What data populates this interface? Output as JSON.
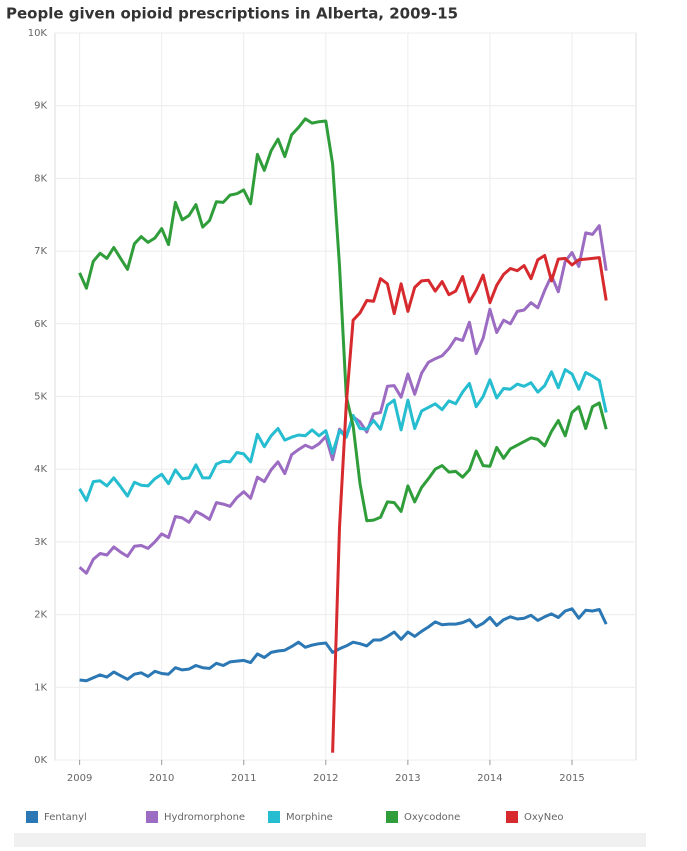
{
  "chart_data": {
    "type": "line",
    "title": "People given opioid prescriptions in Alberta, 2009-15",
    "x": [
      2009,
      2009.083,
      2009.167,
      2009.25,
      2009.333,
      2009.417,
      2009.5,
      2009.583,
      2009.667,
      2009.75,
      2009.833,
      2009.917,
      2010,
      2010.083,
      2010.167,
      2010.25,
      2010.333,
      2010.417,
      2010.5,
      2010.583,
      2010.667,
      2010.75,
      2010.833,
      2010.917,
      2011,
      2011.083,
      2011.167,
      2011.25,
      2011.333,
      2011.417,
      2011.5,
      2011.583,
      2011.667,
      2011.75,
      2011.833,
      2011.917,
      2012,
      2012.083,
      2012.167,
      2012.25,
      2012.333,
      2012.417,
      2012.5,
      2012.583,
      2012.667,
      2012.75,
      2012.833,
      2012.917,
      2013,
      2013.083,
      2013.167,
      2013.25,
      2013.333,
      2013.417,
      2013.5,
      2013.583,
      2013.667,
      2013.75,
      2013.833,
      2013.917,
      2014,
      2014.083,
      2014.167,
      2014.25,
      2014.333,
      2014.417,
      2014.5,
      2014.583,
      2014.667,
      2014.75,
      2014.833,
      2014.917,
      2015,
      2015.083,
      2015.167,
      2015.25,
      2015.333,
      2015.417
    ],
    "series": [
      {
        "name": "Fentanyl",
        "color": "#2b78b4",
        "values": [
          1100,
          1090,
          1130,
          1170,
          1140,
          1210,
          1160,
          1110,
          1180,
          1200,
          1150,
          1220,
          1190,
          1180,
          1270,
          1240,
          1250,
          1300,
          1270,
          1260,
          1330,
          1300,
          1350,
          1360,
          1370,
          1340,
          1460,
          1410,
          1480,
          1500,
          1510,
          1560,
          1620,
          1550,
          1580,
          1600,
          1610,
          1480,
          1530,
          1570,
          1620,
          1600,
          1570,
          1650,
          1650,
          1700,
          1760,
          1660,
          1760,
          1700,
          1770,
          1830,
          1900,
          1860,
          1870,
          1870,
          1890,
          1930,
          1830,
          1880,
          1960,
          1850,
          1930,
          1970,
          1940,
          1950,
          1990,
          1920,
          1970,
          2010,
          1960,
          2050,
          2080,
          1950,
          2060,
          2050,
          2070,
          1870
        ]
      },
      {
        "name": "Hydromorphone",
        "color": "#9b6cc2",
        "values": [
          2650,
          2570,
          2760,
          2840,
          2820,
          2930,
          2860,
          2800,
          2940,
          2950,
          2910,
          3000,
          3110,
          3060,
          3350,
          3330,
          3270,
          3420,
          3370,
          3310,
          3540,
          3520,
          3490,
          3610,
          3690,
          3600,
          3890,
          3830,
          3990,
          4100,
          3940,
          4200,
          4270,
          4330,
          4290,
          4350,
          4450,
          4130,
          4550,
          4450,
          4720,
          4650,
          4510,
          4760,
          4780,
          5140,
          5150,
          4990,
          5310,
          5030,
          5320,
          5470,
          5520,
          5560,
          5660,
          5800,
          5770,
          6020,
          5590,
          5800,
          6200,
          5880,
          6050,
          6000,
          6170,
          6190,
          6290,
          6220,
          6460,
          6660,
          6440,
          6860,
          6980,
          6790,
          7250,
          7230,
          7350,
          6730
        ]
      },
      {
        "name": "Morphine",
        "color": "#26bdd0",
        "values": [
          3730,
          3570,
          3830,
          3840,
          3770,
          3880,
          3760,
          3630,
          3820,
          3780,
          3770,
          3870,
          3930,
          3800,
          3990,
          3870,
          3880,
          4060,
          3880,
          3880,
          4070,
          4110,
          4100,
          4230,
          4210,
          4100,
          4480,
          4310,
          4460,
          4560,
          4400,
          4440,
          4470,
          4460,
          4540,
          4460,
          4530,
          4220,
          4530,
          4440,
          4740,
          4560,
          4550,
          4670,
          4550,
          4880,
          4950,
          4540,
          4950,
          4560,
          4800,
          4850,
          4900,
          4820,
          4940,
          4900,
          5060,
          5180,
          4860,
          5000,
          5230,
          4980,
          5110,
          5100,
          5170,
          5140,
          5190,
          5060,
          5150,
          5340,
          5120,
          5370,
          5310,
          5100,
          5330,
          5280,
          5220,
          4780
        ]
      },
      {
        "name": "Oxycodone",
        "color": "#2f9d3a",
        "values": [
          6700,
          6490,
          6860,
          6970,
          6900,
          7050,
          6900,
          6750,
          7100,
          7200,
          7120,
          7180,
          7310,
          7090,
          7670,
          7430,
          7490,
          7640,
          7330,
          7420,
          7680,
          7670,
          7770,
          7790,
          7840,
          7650,
          8330,
          8110,
          8380,
          8540,
          8300,
          8600,
          8700,
          8820,
          8760,
          8780,
          8790,
          8200,
          6800,
          5000,
          4600,
          3800,
          3290,
          3300,
          3340,
          3550,
          3540,
          3420,
          3770,
          3550,
          3750,
          3870,
          4000,
          4050,
          3960,
          3970,
          3890,
          3990,
          4250,
          4050,
          4040,
          4300,
          4150,
          4280,
          4330,
          4380,
          4430,
          4410,
          4320,
          4520,
          4670,
          4460,
          4780,
          4860,
          4560,
          4860,
          4910,
          4550
        ]
      },
      {
        "name": "OxyNeo",
        "color": "#d62a2e",
        "values": [
          null,
          null,
          null,
          null,
          null,
          null,
          null,
          null,
          null,
          null,
          null,
          null,
          null,
          null,
          null,
          null,
          null,
          null,
          null,
          null,
          null,
          null,
          null,
          null,
          null,
          null,
          null,
          null,
          null,
          null,
          null,
          null,
          null,
          null,
          null,
          null,
          null,
          100,
          3200,
          4900,
          6050,
          6150,
          6320,
          6310,
          6620,
          6550,
          6140,
          6550,
          6170,
          6500,
          6590,
          6600,
          6450,
          6580,
          6400,
          6450,
          6650,
          6300,
          6460,
          6670,
          6290,
          6530,
          6680,
          6760,
          6730,
          6800,
          6620,
          6880,
          6940,
          6590,
          6890,
          6900,
          6810,
          6880,
          6890,
          6900,
          6910,
          6320
        ]
      }
    ],
    "xlim": [
      2008.7,
      2015.78
    ],
    "xticks": [
      2009,
      2010,
      2011,
      2012,
      2013,
      2014,
      2015
    ],
    "ylim": [
      0,
      10000
    ],
    "yticks": [
      {
        "value": 0,
        "label": "0K"
      },
      {
        "value": 1000,
        "label": "1K"
      },
      {
        "value": 2000,
        "label": "2K"
      },
      {
        "value": 3000,
        "label": "3K"
      },
      {
        "value": 4000,
        "label": "4K"
      },
      {
        "value": 5000,
        "label": "5K"
      },
      {
        "value": 6000,
        "label": "6K"
      },
      {
        "value": 7000,
        "label": "7K"
      },
      {
        "value": 8000,
        "label": "8K"
      },
      {
        "value": 9000,
        "label": "9K"
      },
      {
        "value": 10000,
        "label": "10K"
      }
    ],
    "grid": true,
    "legend": "bottom"
  }
}
